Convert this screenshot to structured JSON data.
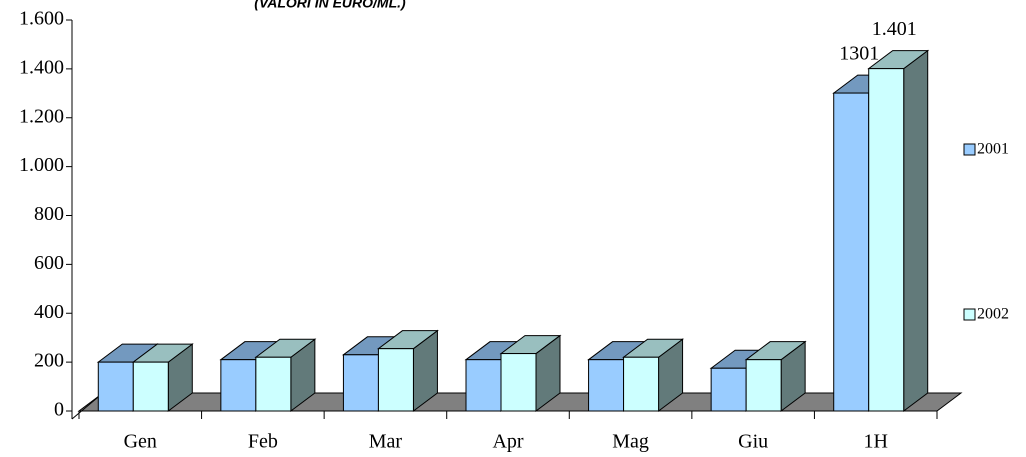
{
  "chart_data": {
    "type": "bar3d",
    "title": "(VALORI IN EURO/ML.)",
    "categories": [
      "Gen",
      "Feb",
      "Mar",
      "Apr",
      "Mag",
      "Giu",
      "1H"
    ],
    "series": [
      {
        "name": "2001",
        "color": "#99ccff",
        "values": [
          200,
          210,
          230,
          210,
          210,
          175,
          1301
        ],
        "value_labels": [
          null,
          null,
          null,
          null,
          null,
          null,
          "1301"
        ]
      },
      {
        "name": "2002",
        "color": "#ccffff",
        "values": [
          200,
          220,
          255,
          235,
          220,
          210,
          1401
        ],
        "value_labels": [
          null,
          null,
          null,
          null,
          null,
          null,
          "1.401"
        ]
      }
    ],
    "ylim": [
      0,
      1600
    ],
    "yticks": [
      0,
      200,
      400,
      600,
      800,
      {
        "value": 1000,
        "label": "1.000"
      },
      {
        "value": 1200,
        "label": "1.200"
      },
      {
        "value": 1400,
        "label": "1.400"
      },
      {
        "value": 1600,
        "label": "1.600"
      }
    ],
    "floor_color": "#808080"
  }
}
